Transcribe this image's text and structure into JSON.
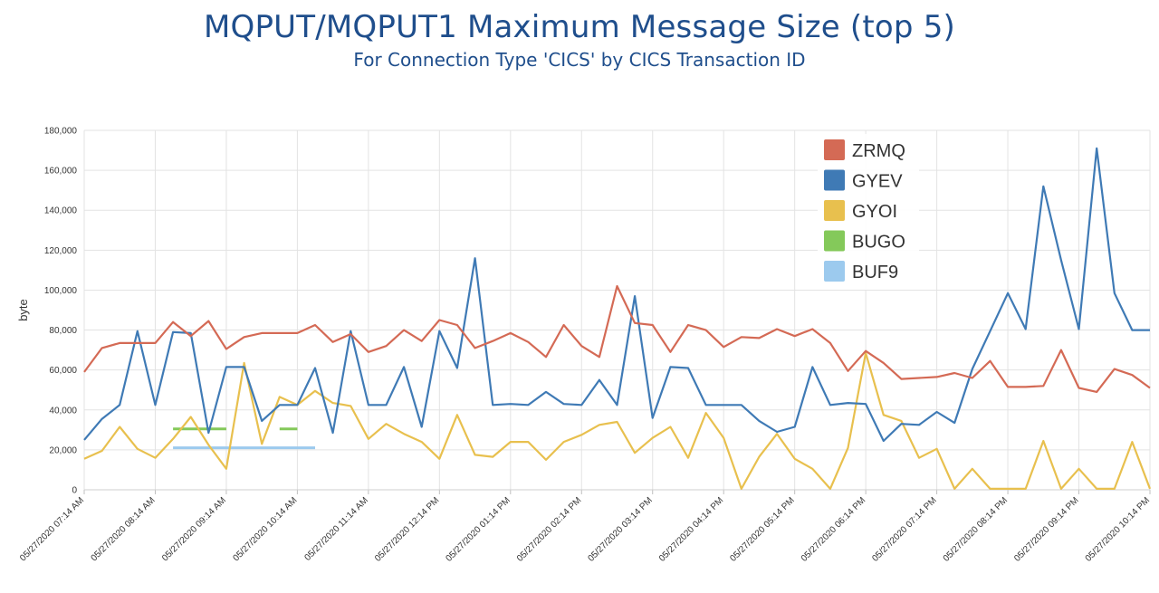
{
  "chart_data": {
    "type": "line",
    "title": "MQPUT/MQPUT1 Maximum Message Size (top 5)",
    "subtitle": "For Connection Type 'CICS' by CICS Transaction ID",
    "xlabel": "",
    "ylabel": "byte",
    "ylim": [
      0,
      180000
    ],
    "yticks": [
      0,
      20000,
      40000,
      60000,
      80000,
      100000,
      120000,
      140000,
      160000,
      180000
    ],
    "ytick_labels": [
      "0",
      "20,000",
      "40,000",
      "60,000",
      "80,000",
      "100,000",
      "120,000",
      "140,000",
      "160,000",
      "180,000"
    ],
    "x_tick_labels": [
      "05/27/2020 07:14 AM",
      "05/27/2020 08:14 AM",
      "05/27/2020 09:14 AM",
      "05/27/2020 10:14 AM",
      "05/27/2020 11:14 AM",
      "05/27/2020 12:14 PM",
      "05/27/2020 01:14 PM",
      "05/27/2020 02:14 PM",
      "05/27/2020 03:14 PM",
      "05/27/2020 04:14 PM",
      "05/27/2020 05:14 PM",
      "05/27/2020 06:14 PM",
      "05/27/2020 07:14 PM",
      "05/27/2020 08:14 PM",
      "05/27/2020 09:14 PM",
      "05/27/2020 10:14 PM"
    ],
    "interval_minutes": 15,
    "grid": true,
    "legend_position": "top-right",
    "series": [
      {
        "name": "ZRMQ",
        "color": "#d46a55",
        "values": [
          59000,
          71000,
          73500,
          73500,
          73500,
          84000,
          77000,
          84500,
          70500,
          76500,
          78500,
          78500,
          78500,
          82500,
          74000,
          78000,
          69000,
          72000,
          80000,
          74500,
          85000,
          82500,
          71000,
          74500,
          78500,
          74000,
          66500,
          82500,
          72000,
          66500,
          102000,
          83500,
          82500,
          69000,
          82500,
          80000,
          71500,
          76500,
          76000,
          80500,
          77000,
          80500,
          73500,
          59500,
          69500,
          63500,
          55500,
          56000,
          56500,
          58500,
          56000,
          64500,
          51500,
          51500,
          52000,
          70000,
          51000,
          49000,
          60500,
          57500,
          51000
        ]
      },
      {
        "name": "GYEV",
        "color": "#3f7ab5",
        "values": [
          25000,
          35500,
          42500,
          79500,
          42500,
          79000,
          78500,
          28500,
          61500,
          61500,
          34500,
          42500,
          42500,
          61000,
          28500,
          79500,
          42500,
          42500,
          61500,
          31500,
          79500,
          61000,
          116000,
          42500,
          43000,
          42500,
          49000,
          43000,
          42500,
          55000,
          42500,
          97000,
          36000,
          61500,
          61000,
          42500,
          42500,
          42500,
          34500,
          29000,
          31500,
          61500,
          42500,
          43500,
          43000,
          24500,
          33000,
          32500,
          39000,
          33500,
          60500,
          79500,
          98500,
          80500,
          152000,
          115000,
          80500,
          171000,
          98500,
          80000,
          80000
        ]
      },
      {
        "name": "GYOI",
        "color": "#e8c04e",
        "values": [
          15500,
          19500,
          31500,
          20500,
          16000,
          25500,
          36500,
          22500,
          10500,
          63500,
          23000,
          46500,
          42500,
          49500,
          43500,
          42000,
          25500,
          33000,
          28000,
          24000,
          15500,
          37500,
          17500,
          16500,
          24000,
          24000,
          15000,
          24000,
          27500,
          32500,
          34000,
          18500,
          26000,
          31500,
          16000,
          38500,
          26000,
          500,
          16500,
          28000,
          15500,
          10500,
          500,
          21000,
          68500,
          37500,
          34500,
          16000,
          20500,
          500,
          10500,
          500,
          500,
          500,
          24500,
          500,
          10500,
          500,
          500,
          24000,
          500
        ]
      },
      {
        "name": "BUGO",
        "color": "#84c95a",
        "segments": [
          {
            "x_start_index": 5,
            "x_end_index": 8,
            "value": 30500
          },
          {
            "x_start_index": 11,
            "x_end_index": 12,
            "value": 30500
          }
        ]
      },
      {
        "name": "BUF9",
        "color": "#9ccaee",
        "segments": [
          {
            "x_start_index": 5,
            "x_end_index": 13,
            "value": 21000
          }
        ]
      }
    ]
  }
}
